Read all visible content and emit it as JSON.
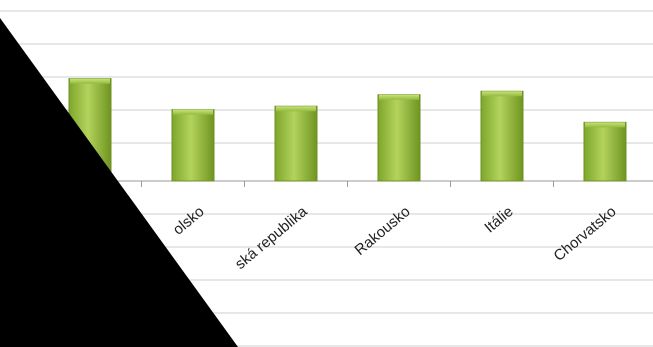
{
  "chart_data": {
    "type": "bar",
    "categories": [
      "",
      "Polsko",
      "Česká republika",
      "Rakousko",
      "Itálie",
      "Chorvatsko"
    ],
    "tick_labels": [
      "",
      "olsko",
      "ská republika",
      "Rakousko",
      "Itálie",
      "Chorvatsko"
    ],
    "values": [
      8.9,
      6.2,
      6.5,
      7.5,
      7.8,
      5.1
    ],
    "ylim": [
      0,
      10
    ],
    "grid": true,
    "legend": "none",
    "bar_color": "#8db33a",
    "bar_edge_color": "#6d8f24"
  }
}
